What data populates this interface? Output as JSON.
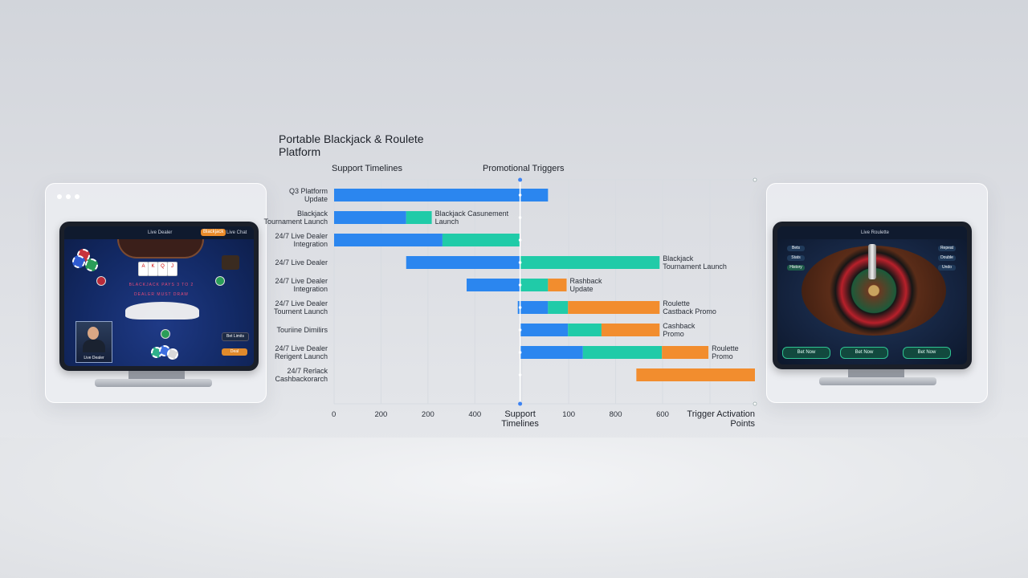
{
  "colors": {
    "blue": "#2b86ef",
    "teal": "#20cba8",
    "orange": "#f28d2e",
    "grid": "#d7dbe1",
    "marker": "#3d83f2"
  },
  "left_device": {
    "header": {
      "title": "Live Dealer",
      "badge": "Blackjack",
      "status": "Live Chat"
    },
    "felt_text": [
      "BLACKJACK PAYS 3 TO 2",
      "DEALER MUST DRAW"
    ],
    "dealer_label": "Live Dealer",
    "button_top": "Bet Limits",
    "button_bottom": "Deal"
  },
  "right_device": {
    "header": {
      "title": "Live Roulette"
    },
    "side_left": [
      "Bets",
      "Stats",
      "History"
    ],
    "side_right": [
      "Repeat",
      "Double",
      "Undo"
    ],
    "buttons": [
      "Bet Now",
      "Bet Now",
      "Bet Now"
    ]
  },
  "chart_data": {
    "type": "bar",
    "title": "Portable Blackjack & Roulete Platform",
    "header_left": "Support Timelines",
    "header_center": "Promotional Triggers",
    "xlabel_center": "Support Timelines",
    "xlabel_right": "Trigger Activation Points",
    "x_ticks": [
      "0",
      "200",
      "200",
      "400",
      "",
      "100",
      "800",
      "600"
    ],
    "series": [
      {
        "color": "blue"
      },
      {
        "color": "teal"
      },
      {
        "color": "orange"
      }
    ],
    "rows": [
      {
        "label": [
          "Q3 Platform",
          "Update"
        ],
        "segments": [
          [
            0,
            460,
            "blue"
          ]
        ],
        "annotation": []
      },
      {
        "label": [
          "Blackjack",
          "Tournament Launch"
        ],
        "segments": [
          [
            0,
            155,
            "blue"
          ],
          [
            155,
            210,
            "teal"
          ]
        ],
        "annotation": [
          "Blackjack Casunement",
          "Launch"
        ]
      },
      {
        "label": [
          "24/7 Live Dealer",
          "Integration"
        ],
        "segments": [
          [
            0,
            233,
            "blue"
          ],
          [
            233,
            400,
            "teal"
          ]
        ],
        "annotation": []
      },
      {
        "label": [
          "24/7 Live Dealer",
          ""
        ],
        "segments": [
          [
            155,
            400,
            "blue"
          ],
          [
            400,
            700,
            "teal"
          ]
        ],
        "annotation": [
          "Blackjack",
          "Tournament Launch"
        ]
      },
      {
        "label": [
          "24/7 Live Dealer",
          "Integration"
        ],
        "segments": [
          [
            285,
            400,
            "blue"
          ],
          [
            400,
            460,
            "teal"
          ],
          [
            460,
            500,
            "orange"
          ]
        ],
        "annotation": [
          "Rashback",
          "Update"
        ]
      },
      {
        "label": [
          "24/7 Live Dealer",
          "Tournent Launch"
        ],
        "segments": [
          [
            395,
            460,
            "blue"
          ],
          [
            460,
            503,
            "teal"
          ],
          [
            503,
            700,
            "orange"
          ]
        ],
        "annotation": [
          "Roulette",
          "Castback Promo"
        ]
      },
      {
        "label": [
          "Touriine Dimilirs",
          ""
        ],
        "segments": [
          [
            400,
            503,
            "blue"
          ],
          [
            503,
            575,
            "teal"
          ],
          [
            575,
            700,
            "orange"
          ]
        ],
        "annotation": [
          "Cashback",
          "Promo"
        ]
      },
      {
        "label": [
          "24/7 Live Dealer",
          "Rerigent Launch"
        ],
        "segments": [
          [
            400,
            535,
            "blue"
          ],
          [
            535,
            705,
            "teal"
          ],
          [
            705,
            805,
            "orange"
          ]
        ],
        "annotation": [
          "Roulette",
          "Promo"
        ]
      },
      {
        "label": [
          "24/7 Rerlack",
          "Cashbackorarch"
        ],
        "segments": [
          [
            650,
            905,
            "orange"
          ]
        ],
        "annotation": []
      }
    ],
    "trigger_point": 400,
    "xlim": [
      0,
      905
    ],
    "grid": "vertical"
  }
}
